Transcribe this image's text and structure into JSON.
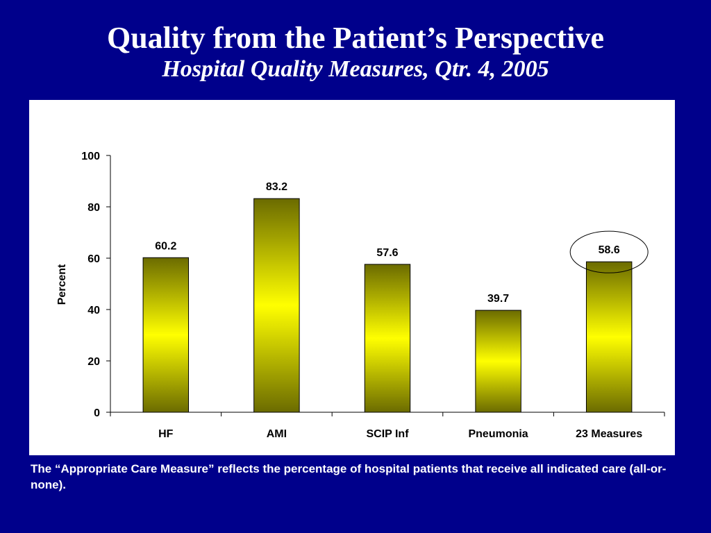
{
  "slide": {
    "title": "Quality from the Patient’s Perspective",
    "subtitle": "Hospital Quality Measures, Qtr. 4, 2005",
    "caption": "The “Appropriate Care Measure” reflects the percentage of hospital patients that receive all indicated care (all-or-none)."
  },
  "colors": {
    "background": "#00008b",
    "bar_edge": "#6b6b00",
    "bar_center": "#ffff00",
    "bar_outline": "#000000"
  },
  "chart_data": {
    "type": "bar",
    "title": "",
    "xlabel": "",
    "ylabel": "Percent",
    "categories": [
      "HF",
      "AMI",
      "SCIP Inf",
      "Pneumonia",
      "23 Measures"
    ],
    "values": [
      60.2,
      83.2,
      57.6,
      39.7,
      58.6
    ],
    "data_labels": [
      "60.2",
      "83.2",
      "57.6",
      "39.7",
      "58.6"
    ],
    "ylim": [
      0,
      100
    ],
    "yticks": [
      0,
      20,
      40,
      60,
      80,
      100
    ],
    "grid": false,
    "legend": "none",
    "highlighted_category": "23 Measures"
  }
}
